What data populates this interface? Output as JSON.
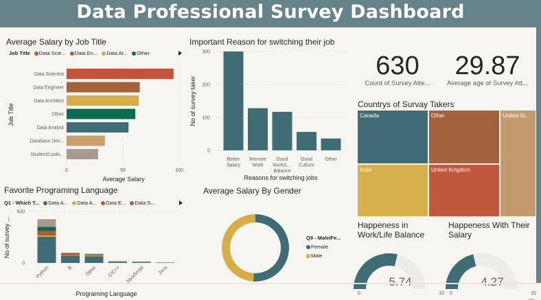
{
  "header": {
    "title": "Data Professional Survey Dashboard"
  },
  "salary_by_job": {
    "title": "Average Salary by Job Title",
    "legend_title": "Job Title",
    "legend_items": [
      {
        "label": "Data Scie...",
        "color": "#c1543a"
      },
      {
        "label": "Data En...",
        "color": "#a5623a"
      },
      {
        "label": "Data Ar...",
        "color": "#d6ad47"
      },
      {
        "label": "Other",
        "color": "#0d6c50"
      }
    ]
  },
  "switch_reason": {
    "title": "Important Reason for switching their job"
  },
  "kpis": {
    "count": {
      "value": "630",
      "label": "Count of Survey Atte..."
    },
    "age": {
      "value": "29.87",
      "label": "Average age of Survey Att..."
    }
  },
  "countries": {
    "title": "Countrys of Survay Takers",
    "tiles": [
      {
        "label": "Canada",
        "color": "#3f6c75"
      },
      {
        "label": "Other",
        "color": "#a3613c"
      },
      {
        "label": "United St...",
        "color": "#c39a6b"
      },
      {
        "label": "India",
        "color": "#d6b04b"
      },
      {
        "label": "United Kingdom",
        "color": "#c1573d"
      }
    ]
  },
  "fav_language": {
    "title": "Favorite Programing Language",
    "legend_title": "Q1 - Which T...",
    "legend_items": [
      {
        "label": "Data A...",
        "color": "#3f6c75"
      },
      {
        "label": "Data A...",
        "color": "#d6ad47"
      },
      {
        "label": "Data E...",
        "color": "#a5623a"
      },
      {
        "label": "Data S...",
        "color": "#c1543a"
      }
    ]
  },
  "gender_salary": {
    "title": "Average Salary By Gender",
    "legend_title": "Q9 - Male/Fe...",
    "legend_items": [
      {
        "label": "Female",
        "color": "#3f6c75"
      },
      {
        "label": "Male",
        "color": "#d6ad47"
      }
    ]
  },
  "happiness_worklife": {
    "title_line1": "Happeness in",
    "title_line2": "Work/Life Balance",
    "value": "5.74",
    "min": "0",
    "max": "10"
  },
  "happiness_salary": {
    "title_line1": "Happeness With Their",
    "title_line2": "Salary",
    "value": "4.27",
    "min": "0",
    "max": "10"
  },
  "chart_data": [
    {
      "type": "bar",
      "orientation": "horizontal",
      "title": "Average Salary by Job Title",
      "xlabel": "Average Salary",
      "ylabel": "Job Title",
      "xlim": [
        0,
        100
      ],
      "xticks": [
        "0",
        "50",
        "100"
      ],
      "categories": [
        "Data Scientist",
        "Data Engineer",
        "Data Architect",
        "Other",
        "Data Analyst",
        "Database Dev...",
        "Student/Looki..."
      ],
      "values": [
        95,
        65,
        64,
        61,
        55,
        34,
        28
      ],
      "colors": [
        "#c1543a",
        "#a5623a",
        "#d6ad47",
        "#0d6c50",
        "#3f6c75",
        "#c99e6a",
        "#a69a8f"
      ]
    },
    {
      "type": "bar",
      "title": "Important Reason for switching their job",
      "xlabel": "Reasons for switching jobs",
      "ylabel": "No of survey taker",
      "ylim": [
        0,
        300
      ],
      "yticks": [
        "0",
        "100",
        "200",
        "300"
      ],
      "categories": [
        [
          "Better",
          "Salary"
        ],
        [
          "Remote",
          "Work"
        ],
        [
          "Good",
          "Work/L...",
          "Balance"
        ],
        [
          "Good",
          "Culture"
        ],
        [
          "Other"
        ]
      ],
      "values": [
        300,
        128,
        117,
        56,
        36
      ],
      "color": "#3f6c75"
    },
    {
      "type": "bar",
      "stacked": true,
      "title": "Favorite Programing Language",
      "xlabel": "Programing Language",
      "ylabel": "No of survey ...",
      "ylim": [
        0,
        500
      ],
      "yticks": [
        "0",
        "500"
      ],
      "categories": [
        "Python",
        "R",
        "Other",
        "C/C++",
        "JavaScript",
        "Java"
      ],
      "series": [
        {
          "name": "Data A...",
          "color": "#3f6c75",
          "values": [
            255,
            70,
            65,
            10,
            8,
            3
          ]
        },
        {
          "name": "Data A...",
          "color": "#d6ad47",
          "values": [
            10,
            5,
            5,
            1,
            1,
            0
          ]
        },
        {
          "name": "Data E...",
          "color": "#a5623a",
          "values": [
            25,
            5,
            5,
            2,
            2,
            1
          ]
        },
        {
          "name": "Data S...",
          "color": "#c1543a",
          "values": [
            20,
            10,
            5,
            2,
            1,
            1
          ]
        },
        {
          "name": "",
          "color": "#0d6c50",
          "values": [
            40,
            3,
            3,
            1,
            1,
            0
          ]
        },
        {
          "name": "",
          "color": "#a69a8f",
          "values": [
            75,
            7,
            7,
            2,
            2,
            1
          ]
        }
      ]
    },
    {
      "type": "pie",
      "donut": true,
      "title": "Average Salary By Gender",
      "labels": [
        "Female",
        "Male"
      ],
      "values": [
        51,
        49
      ],
      "colors": [
        "#3f6c75",
        "#d6ad47"
      ]
    }
  ]
}
